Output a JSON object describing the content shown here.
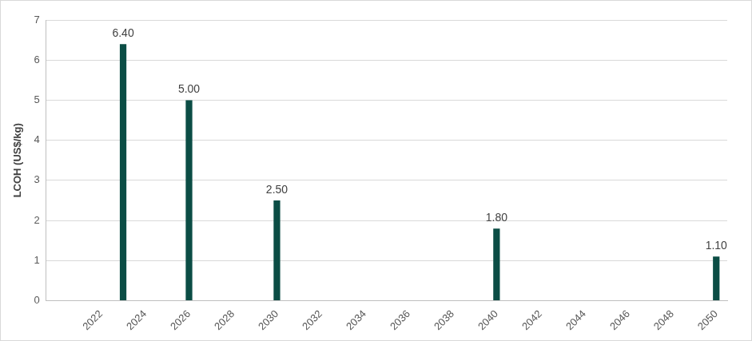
{
  "chart_data": {
    "type": "bar",
    "y_label": "LCOH (US$/kg)",
    "categories": [
      null,
      null,
      "2022",
      null,
      "2024",
      null,
      "2026",
      null,
      "2028",
      null,
      "2030",
      null,
      "2032",
      null,
      "2034",
      null,
      "2036",
      null,
      "2038",
      null,
      "2040",
      null,
      "2042",
      null,
      "2044",
      null,
      "2046",
      null,
      "2048",
      null,
      "2050"
    ],
    "values": [
      null,
      null,
      null,
      6.4,
      null,
      null,
      5.0,
      null,
      null,
      null,
      2.5,
      null,
      null,
      null,
      null,
      null,
      null,
      null,
      null,
      null,
      1.8,
      null,
      null,
      null,
      null,
      null,
      null,
      null,
      null,
      null,
      1.1
    ],
    "value_labels": [
      null,
      null,
      null,
      "6.40",
      null,
      null,
      "5.00",
      null,
      null,
      null,
      "2.50",
      null,
      null,
      null,
      null,
      null,
      null,
      null,
      null,
      null,
      "1.80",
      null,
      null,
      null,
      null,
      null,
      null,
      null,
      null,
      null,
      "1.10"
    ],
    "color": "#0b4d45",
    "ylim": [
      0,
      7
    ],
    "yticks": [
      0,
      1,
      2,
      3,
      4,
      5,
      6,
      7
    ],
    "grid": true,
    "data_labels": true
  }
}
